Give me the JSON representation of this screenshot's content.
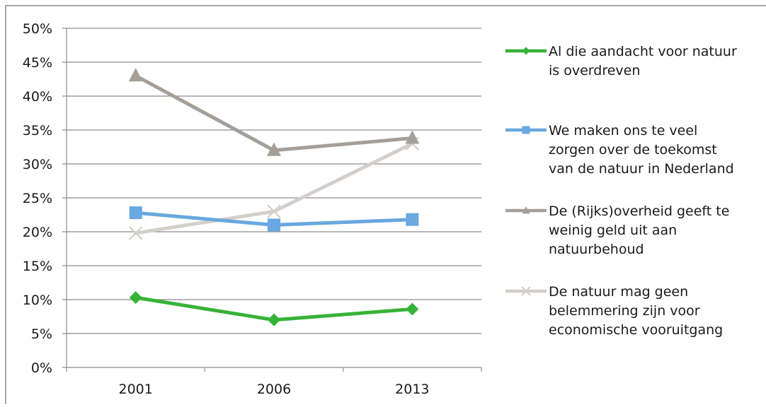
{
  "chart_data": {
    "type": "line",
    "categories": [
      "2001",
      "2006",
      "2013"
    ],
    "y_ticks": [
      "0%",
      "5%",
      "10%",
      "15%",
      "20%",
      "25%",
      "30%",
      "35%",
      "40%",
      "45%",
      "50%"
    ],
    "ylim": [
      0,
      50
    ],
    "y_unit": "%",
    "grid": "horizontal",
    "legend_position": "right",
    "series": [
      {
        "name_lines": [
          "Al die aandacht voor natuur",
          "is overdreven"
        ],
        "values": [
          10.3,
          7.0,
          8.6
        ],
        "color": "#36b336",
        "marker": "diamond"
      },
      {
        "name_lines": [
          "We maken ons te veel",
          "zorgen over de toekomst",
          "van de natuur in Nederland"
        ],
        "values": [
          22.8,
          21.0,
          21.8
        ],
        "color": "#69a8e0",
        "marker": "square"
      },
      {
        "name_lines": [
          "De (Rijks)overheid geeft te",
          "weinig geld uit aan",
          "natuurbehoud"
        ],
        "values": [
          43.0,
          32.0,
          33.8
        ],
        "color": "#a59f97",
        "marker": "triangle"
      },
      {
        "name_lines": [
          "De natuur mag geen",
          "belemmering zijn voor",
          "economische vooruitgang"
        ],
        "values": [
          19.8,
          23.0,
          33.0
        ],
        "color": "#d3d0c9",
        "marker": "x"
      }
    ]
  }
}
